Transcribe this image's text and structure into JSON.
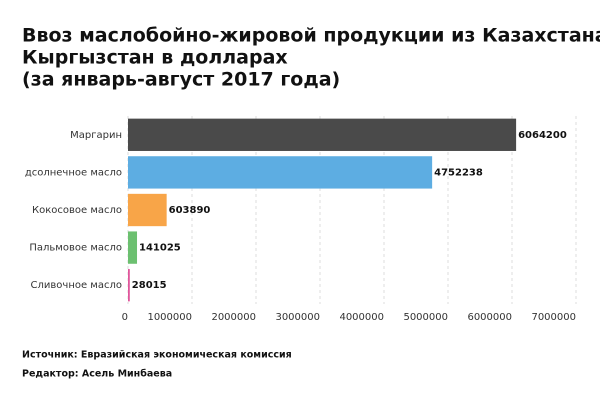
{
  "chart_data": {
    "type": "hbar",
    "title_lines": [
      "Ввоз маслобойно-жировой продукции из Казахстана в",
      "Кыргызстан в долларах",
      "(за январь-август 2017 года)"
    ],
    "categories": [
      "Маргарин",
      "дсолнечное масло",
      "Кокосовое масло",
      "Пальмовое масло",
      "Сливочное масло"
    ],
    "values": [
      6064200,
      4752238,
      603890,
      141025,
      28015
    ],
    "colors": [
      "#4a4a4a",
      "#5dade2",
      "#f8a548",
      "#6cc070",
      "#e0569b"
    ],
    "xlim": [
      0,
      7000000
    ],
    "xticks": [
      0,
      1000000,
      2000000,
      3000000,
      4000000,
      5000000,
      6000000,
      7000000
    ],
    "grid": true
  },
  "footer": {
    "source": "Источник: Евразийская экономическая комиссия",
    "editor": "Редактор: Асель Минбаева"
  }
}
